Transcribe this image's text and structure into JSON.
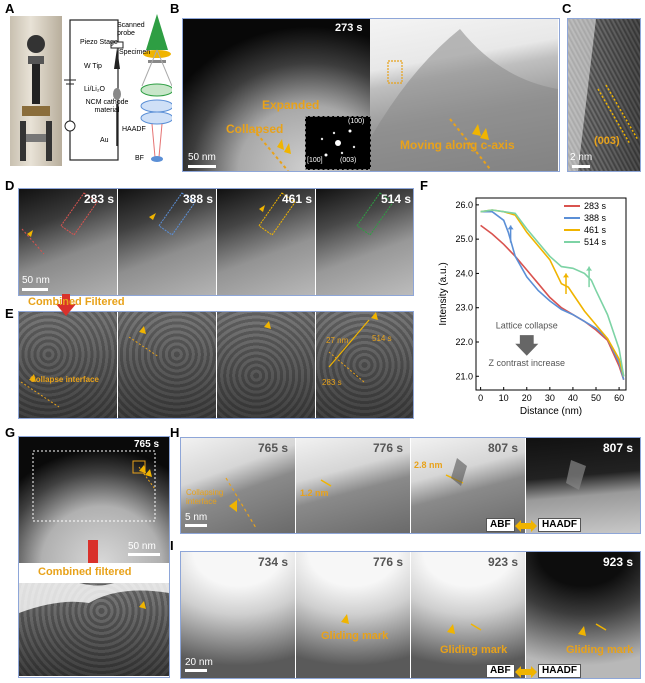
{
  "panels": {
    "A": {
      "letter": "A",
      "labels": {
        "piezo": "Piezo Stage",
        "wtip": "W Tip",
        "lili": "Li/Li₂O",
        "ncm": "NCM cathode material",
        "au": "Au",
        "probe": "Scanned probe",
        "specimen": "Specimen",
        "haadf": "HAADF",
        "bf": "BF"
      }
    },
    "B": {
      "letter": "B",
      "time": "273 s",
      "expanded": "Expanded",
      "collapsed": "Collapsed",
      "moving": "Moving along c-axis",
      "scale": "50 nm",
      "diff": {
        "s100": "(100)",
        "s003": "(003)",
        "zone": "[100]"
      }
    },
    "C": {
      "letter": "C",
      "plane": "(003)",
      "scale": "2 nm"
    },
    "D": {
      "letter": "D",
      "times": [
        "283 s",
        "388 s",
        "461 s",
        "514 s"
      ],
      "scale": "50 nm"
    },
    "E": {
      "letter": "E",
      "combined": "Combined Filtered",
      "collapse": "Collapse interface",
      "dist": "27 nm",
      "t1": "514 s",
      "t2": "283 s"
    },
    "F": {
      "letter": "F"
    },
    "G": {
      "letter": "G",
      "time": "765 s",
      "scale": "50 nm",
      "combined": "Combined filtered"
    },
    "H": {
      "letter": "H",
      "times": [
        "765 s",
        "776 s",
        "807 s",
        "807 s"
      ],
      "interface": "Collapsing interface",
      "d1": "1.2 nm",
      "d2": "2.8 nm",
      "scale": "5 nm",
      "abf": "ABF",
      "haadf": "HAADF"
    },
    "I": {
      "letter": "I",
      "times": [
        "734 s",
        "776 s",
        "923 s",
        "923 s"
      ],
      "gliding": "Gliding mark",
      "scale": "20 nm",
      "abf": "ABF",
      "haadf": "HAADF"
    }
  },
  "chart_data": {
    "type": "line",
    "xlabel": "Distance (nm)",
    "ylabel": "Intensity (a.u.)",
    "xlim": [
      -2,
      63
    ],
    "ylim": [
      20.6,
      26.2
    ],
    "xticks": [
      0,
      10,
      20,
      30,
      40,
      50,
      60
    ],
    "yticks": [
      21.0,
      22.0,
      23.0,
      24.0,
      25.0,
      26.0
    ],
    "legend_position": "top-right",
    "annotations": [
      "Lattice collapse",
      "Z contrast increase"
    ],
    "series": [
      {
        "name": "283 s",
        "color": "#d9534f",
        "x": [
          0,
          5,
          10,
          15,
          20,
          25,
          30,
          35,
          40,
          45,
          50,
          55,
          60,
          62
        ],
        "y": [
          25.4,
          25.15,
          24.85,
          24.5,
          24.1,
          23.7,
          23.3,
          23.0,
          22.8,
          22.6,
          22.35,
          22.05,
          21.3,
          20.9
        ]
      },
      {
        "name": "388 s",
        "color": "#5b8fd6",
        "x": [
          0,
          5,
          10,
          12,
          15,
          20,
          25,
          30,
          35,
          40,
          45,
          50,
          55,
          60,
          62
        ],
        "y": [
          25.8,
          25.8,
          25.55,
          25.2,
          24.5,
          23.9,
          23.5,
          23.2,
          22.95,
          22.8,
          22.6,
          22.4,
          22.1,
          21.4,
          20.9
        ]
      },
      {
        "name": "461 s",
        "color": "#f0b400",
        "x": [
          0,
          5,
          10,
          15,
          20,
          25,
          30,
          35,
          38,
          40,
          45,
          50,
          55,
          60,
          62
        ],
        "y": [
          25.8,
          25.85,
          25.8,
          25.7,
          25.2,
          24.8,
          24.4,
          23.7,
          23.6,
          23.4,
          22.9,
          22.5,
          22.1,
          21.5,
          21.0
        ]
      },
      {
        "name": "514 s",
        "color": "#7dd3a5",
        "x": [
          0,
          5,
          10,
          15,
          20,
          25,
          30,
          35,
          40,
          45,
          48,
          50,
          55,
          60,
          62
        ],
        "y": [
          25.8,
          25.85,
          25.8,
          25.75,
          25.3,
          24.9,
          24.5,
          24.2,
          24.15,
          24.0,
          23.8,
          23.5,
          22.8,
          21.8,
          21.0
        ]
      }
    ]
  }
}
